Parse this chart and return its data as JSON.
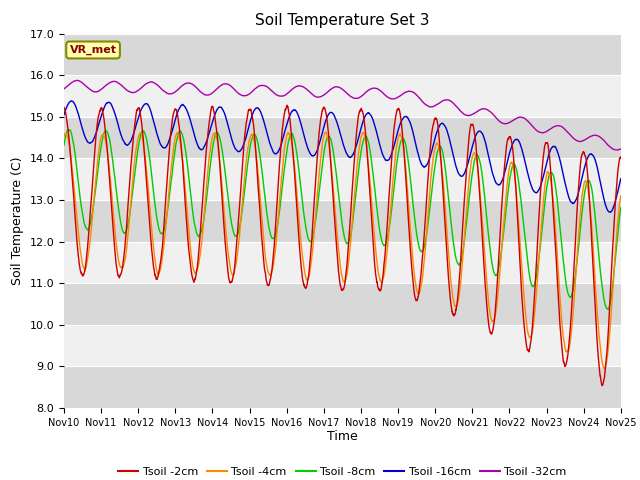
{
  "title": "Soil Temperature Set 3",
  "xlabel": "Time",
  "ylabel": "Soil Temperature (C)",
  "ylim": [
    8.0,
    17.0
  ],
  "yticks": [
    8.0,
    9.0,
    10.0,
    11.0,
    12.0,
    13.0,
    14.0,
    15.0,
    16.0,
    17.0
  ],
  "xtick_labels": [
    "Nov 10",
    "Nov 11",
    "Nov 12",
    "Nov 13",
    "Nov 14",
    "Nov 15",
    "Nov 16",
    "Nov 17",
    "Nov 18",
    "Nov 19",
    "Nov 20",
    "Nov 21",
    "Nov 22",
    "Nov 23",
    "Nov 24",
    "Nov 25"
  ],
  "colors": {
    "Tsoil -2cm": "#cc0000",
    "Tsoil -4cm": "#ff8800",
    "Tsoil -8cm": "#00cc00",
    "Tsoil -16cm": "#0000cc",
    "Tsoil -32cm": "#aa00aa"
  },
  "bg_color": "#e8e8e8",
  "plot_bg_color": "#f0f0f0",
  "vr_met_label": "VR_met",
  "n_points": 3600,
  "days": 15,
  "start_day": 10
}
